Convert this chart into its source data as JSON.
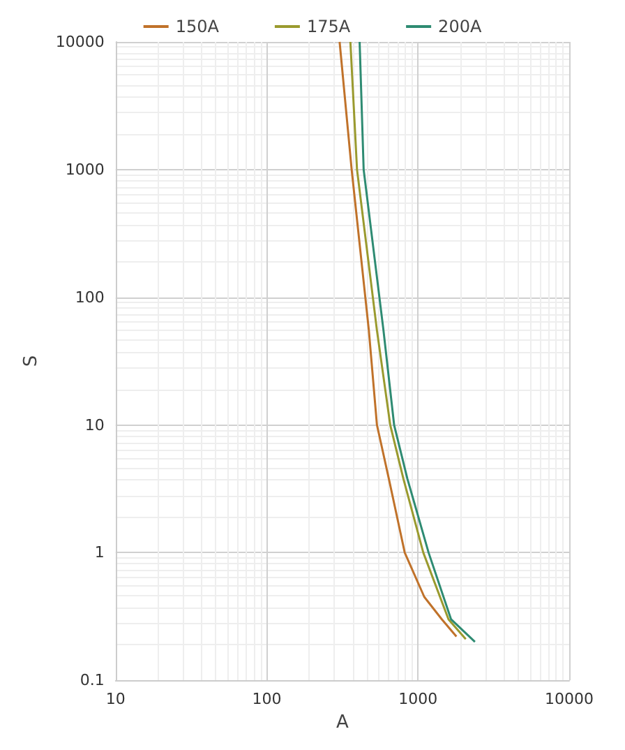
{
  "chart_data": {
    "type": "line",
    "xlabel": "A",
    "ylabel": "S",
    "log": "xy",
    "grid": true,
    "legend": "top",
    "marker": "none",
    "line_style": "solid",
    "xlim": [
      10,
      10000
    ],
    "xticks": [
      10,
      100,
      1000,
      10000
    ],
    "ylim": [
      0.1,
      10000
    ],
    "yticks": [
      0.1,
      1,
      10,
      100,
      1000,
      10000
    ],
    "series": [
      {
        "name": "150A",
        "color": "#c0722a",
        "x": [
          303,
          364,
          473,
          535,
          641,
          817,
          1100,
          1439,
          1795
        ],
        "values": [
          10000,
          1000,
          55,
          10,
          3.8,
          1,
          0.45,
          0.3,
          0.22
        ]
      },
      {
        "name": "175A",
        "color": "#9a9a2e",
        "x": [
          357,
          395,
          535,
          655,
          800,
          1084,
          1592,
          2070
        ],
        "values": [
          10000,
          1000,
          55,
          10,
          3.8,
          1,
          0.3,
          0.21
        ]
      },
      {
        "name": "200A",
        "color": "#2e8b72",
        "x": [
          411,
          437,
          591,
          695,
          850,
          1175,
          1655,
          2380
        ],
        "values": [
          10000,
          1000,
          55,
          10,
          3.8,
          1,
          0.3,
          0.2
        ]
      }
    ]
  }
}
